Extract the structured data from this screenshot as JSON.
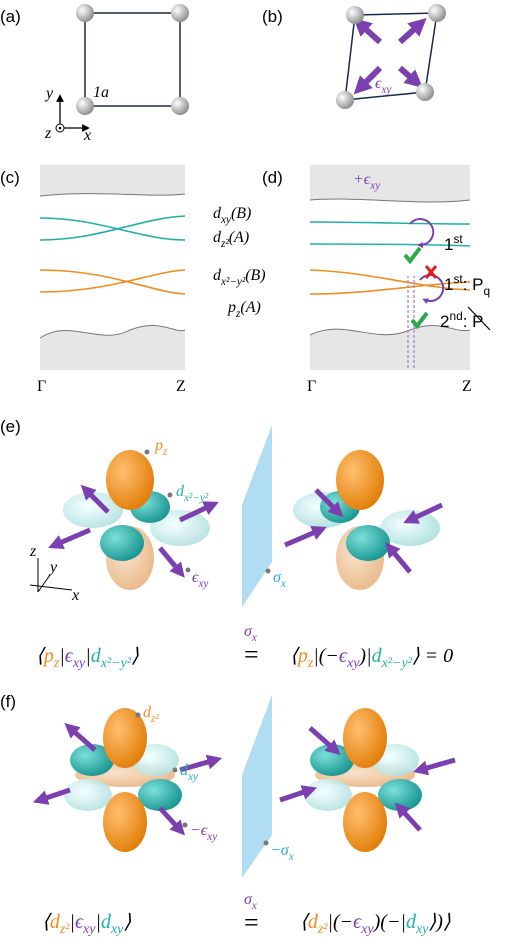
{
  "figure": {
    "a": {
      "label": "(a)",
      "lattice": [
        {
          "t": "1",
          "i": "a"
        }
      ],
      "axes": {
        "x": "x",
        "y": "y",
        "z": "z"
      }
    },
    "b": {
      "label": "(b)",
      "strain": [
        {
          "t": "ϵ",
          "sub": "xy",
          "color": "#7b3fb0"
        }
      ]
    },
    "c": {
      "label": "(c)",
      "k": [
        "Γ",
        "Z"
      ],
      "bands": [
        [
          {
            "t": "d",
            "sub": "xy"
          },
          {
            "t": "(B)"
          }
        ],
        [
          {
            "t": "d",
            "sub": "z²"
          },
          {
            "t": "(A)"
          }
        ],
        [
          {
            "t": "d",
            "sub": "x²−y²"
          },
          {
            "t": "(B)"
          }
        ],
        [
          {
            "t": "p",
            "sub": "z"
          },
          {
            "t": "(A)"
          }
        ]
      ]
    },
    "d": {
      "label": "(d)",
      "k": [
        "Γ",
        "Z"
      ],
      "strain": [
        {
          "t": "+ϵ",
          "sub": "xy",
          "color": "#7b3fb0"
        }
      ],
      "first": [
        {
          "t": "1",
          "sup": "st"
        }
      ],
      "first_pq": [
        {
          "t": "1",
          "sup": "st"
        },
        {
          "t": ": P",
          "sub": "q"
        }
      ],
      "second": [
        {
          "t": "2",
          "sup": "nd"
        },
        {
          "t": ": P"
        }
      ]
    },
    "e": {
      "label": "(e)",
      "axes": {
        "x": "x",
        "y": "y",
        "z": "z"
      },
      "pz": [
        {
          "t": "p",
          "sub": "z",
          "color": "#f28c1e"
        }
      ],
      "dx2y2": [
        {
          "t": "d",
          "sub": "x²−y²",
          "color": "#1fb0aa"
        }
      ],
      "strain": [
        {
          "t": "ϵ",
          "sub": "xy",
          "color": "#7b3fb0"
        }
      ],
      "mirror": [
        {
          "t": "σ",
          "sub": "x",
          "color": "#29a8e0"
        }
      ],
      "op": [
        {
          "t": "σ",
          "sub": "x",
          "color": "#7b3fb0"
        }
      ],
      "eq": "=",
      "left": [
        {
          "t": "⟨"
        },
        {
          "t": "p",
          "sub": "z",
          "color": "#f28c1e"
        },
        {
          "t": "|"
        },
        {
          "t": "ϵ",
          "sub": "xy",
          "color": "#7b3fb0"
        },
        {
          "t": "|"
        },
        {
          "t": "d",
          "sub": "x²−y²",
          "color": "#1fb0aa"
        },
        {
          "t": "⟩"
        }
      ],
      "right": [
        {
          "t": "⟨"
        },
        {
          "t": "p",
          "sub": "z",
          "color": "#f28c1e"
        },
        {
          "t": "|(−"
        },
        {
          "t": "ϵ",
          "sub": "xy",
          "color": "#7b3fb0"
        },
        {
          "t": ")|"
        },
        {
          "t": "d",
          "sub": "x²−y²",
          "color": "#1fb0aa"
        },
        {
          "t": "⟩  =  0"
        }
      ]
    },
    "f": {
      "label": "(f)",
      "dz2": [
        {
          "t": "d",
          "sub": "z²",
          "color": "#f28c1e"
        }
      ],
      "dxy": [
        {
          "t": "d",
          "sub": "xy",
          "color": "#1fb0aa"
        }
      ],
      "strain": [
        {
          "t": "−ϵ",
          "sub": "xy",
          "color": "#7b3fb0"
        }
      ],
      "mirror": [
        {
          "t": "−σ",
          "sub": "x",
          "color": "#29a8e0"
        }
      ],
      "op": [
        {
          "t": "σ",
          "sub": "x",
          "color": "#7b3fb0"
        }
      ],
      "eq": "=",
      "left": [
        {
          "t": "⟨"
        },
        {
          "t": "d",
          "sub": "z²",
          "color": "#f28c1e"
        },
        {
          "t": "|"
        },
        {
          "t": "ϵ",
          "sub": "xy",
          "color": "#7b3fb0"
        },
        {
          "t": "|"
        },
        {
          "t": "d",
          "sub": "xy",
          "color": "#1fb0aa"
        },
        {
          "t": "⟩"
        }
      ],
      "right": [
        {
          "t": "⟨"
        },
        {
          "t": "d",
          "sub": "z²",
          "color": "#f28c1e"
        },
        {
          "t": "|(−"
        },
        {
          "t": "ϵ",
          "sub": "xy",
          "color": "#7b3fb0"
        },
        {
          "t": ")(−|"
        },
        {
          "t": "d",
          "sub": "xy",
          "color": "#1fb0aa"
        },
        {
          "t": "⟩)⟩"
        }
      ]
    }
  }
}
